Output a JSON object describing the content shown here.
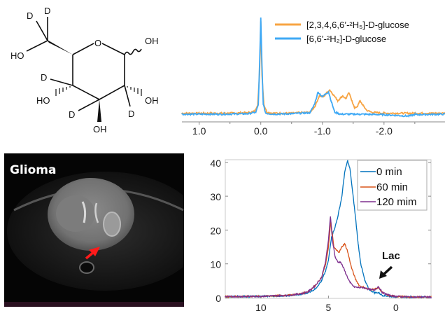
{
  "molecule": {
    "labels": {
      "d_c6a": "D",
      "d_c6b": "D",
      "ho_c6": "HO",
      "o_ring": "O",
      "oh_c1": "OH",
      "d_c4": "D",
      "ho_c4": "HO",
      "oh_c2": "OH",
      "d_c3": "D",
      "d_c2": "D",
      "oh_c3": "OH"
    }
  },
  "mri": {
    "label": "Glioma",
    "arrow_color": "#ff1a1a"
  },
  "chart_data": [
    {
      "type": "line",
      "title": "",
      "xlabel": "",
      "ylabel": "",
      "xlim": [
        1.28,
        -2.99
      ],
      "ylim": [
        0,
        100
      ],
      "x_reversed": true,
      "y_axis_visible": false,
      "grid": false,
      "xticks": [
        1.0,
        0.0,
        -1.0,
        -2.0
      ],
      "xtick_labels": [
        "1.0",
        "0.0",
        "-1.0",
        "-2.0"
      ],
      "legend_position": "top-right",
      "series": [
        {
          "name": "[2,3,4,6,6’-²H₅]-D-glucose",
          "color": "#f7a443",
          "x": [
            1.28,
            0.6,
            0.2,
            0.1,
            0.05,
            0.02,
            0.0,
            -0.02,
            -0.05,
            -0.1,
            -0.2,
            -0.5,
            -0.8,
            -0.88,
            -0.95,
            -1.02,
            -1.08,
            -1.12,
            -1.18,
            -1.25,
            -1.33,
            -1.38,
            -1.43,
            -1.48,
            -1.52,
            -1.57,
            -1.61,
            -1.66,
            -1.72,
            -1.8,
            -2.0,
            -2.5,
            -2.99
          ],
          "y": [
            1,
            1,
            1.5,
            3,
            10,
            40,
            96,
            40,
            10,
            2,
            1,
            1,
            2,
            8,
            19,
            18,
            23,
            25,
            20,
            14,
            19,
            16,
            22,
            14,
            6.5,
            8,
            14,
            9,
            4,
            2,
            1,
            1,
            1
          ]
        },
        {
          "name": "[6,6’-²H₂]-D-glucose",
          "color": "#3fa9f5",
          "x": [
            1.28,
            0.6,
            0.2,
            0.08,
            0.04,
            0.02,
            0.0,
            -0.02,
            -0.04,
            -0.08,
            -0.2,
            -0.5,
            -0.8,
            -0.87,
            -0.93,
            -1.0,
            -1.05,
            -1.1,
            -1.15,
            -1.2,
            -1.3,
            -1.6,
            -2.0,
            -2.4,
            -2.5,
            -2.99
          ],
          "y": [
            0,
            0,
            0.5,
            2,
            10,
            50,
            100,
            50,
            10,
            1,
            0,
            0.5,
            1.5,
            10,
            23,
            18,
            21,
            23,
            12,
            2,
            0,
            0,
            -0.5,
            -2,
            -0.5,
            0
          ]
        }
      ]
    },
    {
      "type": "line",
      "title": "",
      "xlabel": "",
      "ylabel": "",
      "xlim": [
        12.64,
        -2.6
      ],
      "ylim": [
        0,
        41
      ],
      "x_reversed": true,
      "grid": false,
      "xticks": [
        10,
        5,
        0
      ],
      "xtick_labels": [
        "10",
        "5",
        "0"
      ],
      "yticks": [
        0,
        10,
        20,
        30,
        40
      ],
      "ytick_labels": [
        "0",
        "10",
        "20",
        "30",
        "40"
      ],
      "legend_position": "top-right",
      "annotations": [
        {
          "text": "Lac",
          "x": 1.3,
          "y": 3.3
        }
      ],
      "series": [
        {
          "name": "0 min",
          "color": "#0072bd",
          "x": [
            12.64,
            10,
            8,
            7,
            6.5,
            6,
            5.5,
            5.2,
            5.0,
            4.77,
            4.5,
            4.3,
            4.0,
            3.8,
            3.58,
            3.4,
            3.2,
            3.0,
            2.8,
            2.6,
            2.3,
            2.0,
            1.6,
            1.3,
            1.0,
            0.5,
            0,
            -1,
            -2.6
          ],
          "y": [
            0.3,
            0.4,
            0.6,
            1.0,
            1.5,
            2.5,
            5,
            8,
            11,
            18,
            21,
            24,
            30,
            37,
            40.5,
            38,
            31,
            24,
            16,
            10,
            5,
            2.5,
            1.5,
            1.5,
            0.7,
            0.4,
            0.3,
            0.2,
            0.2
          ]
        },
        {
          "name": "60 min",
          "color": "#d95319",
          "x": [
            12.64,
            10,
            8,
            7,
            6.5,
            6,
            5.5,
            5.2,
            5.0,
            4.82,
            4.6,
            4.4,
            4.2,
            4.0,
            3.8,
            3.6,
            3.3,
            3.0,
            2.7,
            2.4,
            2.0,
            1.6,
            1.3,
            1.0,
            0.5,
            0,
            -1,
            -2.6
          ],
          "y": [
            0.3,
            0.4,
            0.7,
            1.2,
            1.8,
            3.5,
            6,
            10,
            15,
            22.5,
            15,
            14,
            13.5,
            15,
            16,
            14,
            9,
            5.5,
            3.5,
            3,
            2.5,
            2.5,
            3,
            1.5,
            0.6,
            0.4,
            0.2,
            0.2
          ]
        },
        {
          "name": "120 mim",
          "color": "#7e2f8e",
          "x": [
            12.64,
            10,
            8,
            7,
            6.5,
            6,
            5.5,
            5.2,
            5.0,
            4.85,
            4.7,
            4.5,
            4.3,
            4.1,
            3.9,
            3.7,
            3.4,
            3.1,
            2.8,
            2.4,
            2.0,
            1.6,
            1.3,
            1.0,
            0.5,
            0,
            -1,
            -2.6
          ],
          "y": [
            0.3,
            0.4,
            0.7,
            1.2,
            1.8,
            3.5,
            6,
            11,
            17,
            24,
            17,
            12,
            10.5,
            10.5,
            9,
            7,
            4.5,
            3.2,
            3,
            3,
            2.5,
            2.2,
            3.3,
            1.5,
            0.7,
            0.4,
            0.2,
            0.2
          ]
        }
      ]
    }
  ]
}
